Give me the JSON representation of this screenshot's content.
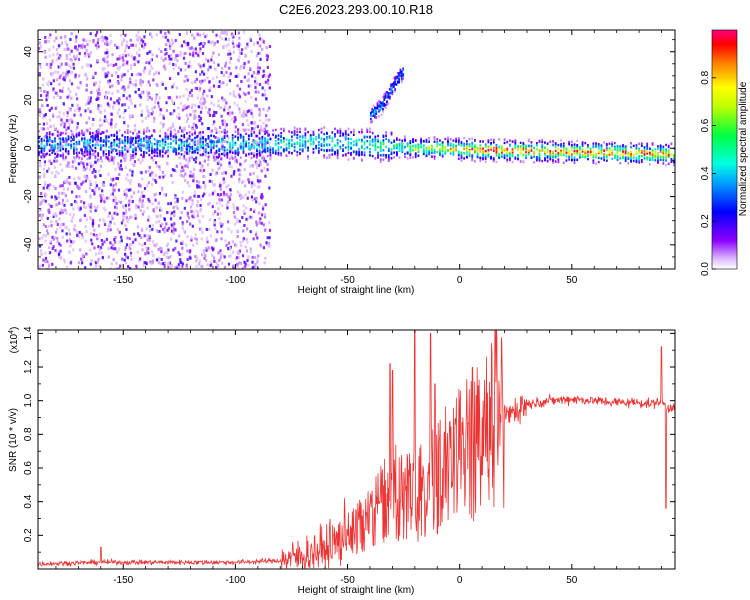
{
  "figure": {
    "title": "C2E6.2023.293.00.10.R18"
  },
  "chart_data": [
    {
      "type": "heatmap",
      "xlabel": "Height of straight line (km)",
      "ylabel": "Frequency (Hz)",
      "xlim": [
        -188,
        96
      ],
      "ylim": [
        -50,
        49
      ],
      "x_ticks": [
        -150,
        -100,
        -50,
        0,
        50
      ],
      "y_ticks": [
        -40,
        -20,
        0,
        20,
        40
      ],
      "colorbar": {
        "label": "Normalized spectral amplitude",
        "range": [
          0,
          1
        ],
        "ticks": [
          "0.0",
          "0.2",
          "0.4",
          "0.6",
          "0.8"
        ],
        "tick_values": [
          0,
          0.2,
          0.4,
          0.6,
          0.8
        ],
        "colors": [
          "#ffffff",
          "#e0c0ff",
          "#8a00ff",
          "#0000ff",
          "#00e5ff",
          "#00ff40",
          "#ffff00",
          "#ff8000",
          "#ff0000",
          "#ff0080"
        ]
      },
      "features": {
        "main_band": {
          "x": [
            -188,
            -100,
            -60,
            -30,
            0,
            50,
            96
          ],
          "freq": [
            2,
            2,
            3,
            1,
            0,
            -1,
            -2
          ],
          "amplitude": [
            0.45,
            0.5,
            0.55,
            0.6,
            0.9,
            0.85,
            0.8
          ]
        },
        "upper_branch": {
          "x": [
            -40,
            -35,
            -30,
            -25
          ],
          "freq": [
            14,
            18,
            26,
            33
          ]
        },
        "noise_region": {
          "x_range": [
            -188,
            -85
          ],
          "freq_range": [
            -50,
            49
          ]
        }
      }
    },
    {
      "type": "line",
      "xlabel": "Height of straight line (km)",
      "ylabel": "SNR (10 * v/v)",
      "y_multiplier": "(x10",
      "y_multiplier_exp": "4",
      "xlim": [
        -188,
        96
      ],
      "ylim": [
        0,
        1.42
      ],
      "x_ticks": [
        -150,
        -100,
        -50,
        0,
        50
      ],
      "y_ticks": [
        0.2,
        0.4,
        0.6,
        0.8,
        1.0,
        1.2,
        1.4
      ],
      "y_tick_labels": [
        "0.2",
        "0.4",
        "0.6",
        "0.8",
        "1.0",
        "1.2",
        "1.4"
      ],
      "series": [
        {
          "color": "#ee3333",
          "envelope_x": [
            -188,
            -160,
            -150,
            -100,
            -80,
            -70,
            -60,
            -50,
            -45,
            -40,
            -35,
            -30,
            -25,
            -20,
            -15,
            -10,
            -5,
            0,
            10,
            20,
            25,
            30,
            40,
            50,
            60,
            70,
            80,
            85,
            90,
            93,
            96
          ],
          "envelope_y": [
            0.03,
            0.04,
            0.04,
            0.04,
            0.05,
            0.08,
            0.12,
            0.2,
            0.25,
            0.3,
            0.38,
            0.45,
            0.45,
            0.45,
            0.5,
            0.55,
            0.6,
            0.66,
            0.78,
            0.9,
            0.95,
            0.98,
            1.0,
            1.01,
            1.0,
            0.99,
            0.99,
            0.98,
            1.0,
            0.95,
            0.98
          ],
          "spikes": [
            {
              "x": -160,
              "y": 0.13
            },
            {
              "x": -31,
              "y": 1.22
            },
            {
              "x": -30,
              "y": 1.18
            },
            {
              "x": -20,
              "y": 1.42
            },
            {
              "x": -13,
              "y": 1.4
            },
            {
              "x": -11,
              "y": 1.1
            },
            {
              "x": 90,
              "y": 1.32
            },
            {
              "x": 92,
              "y": 0.36
            }
          ]
        }
      ]
    }
  ]
}
